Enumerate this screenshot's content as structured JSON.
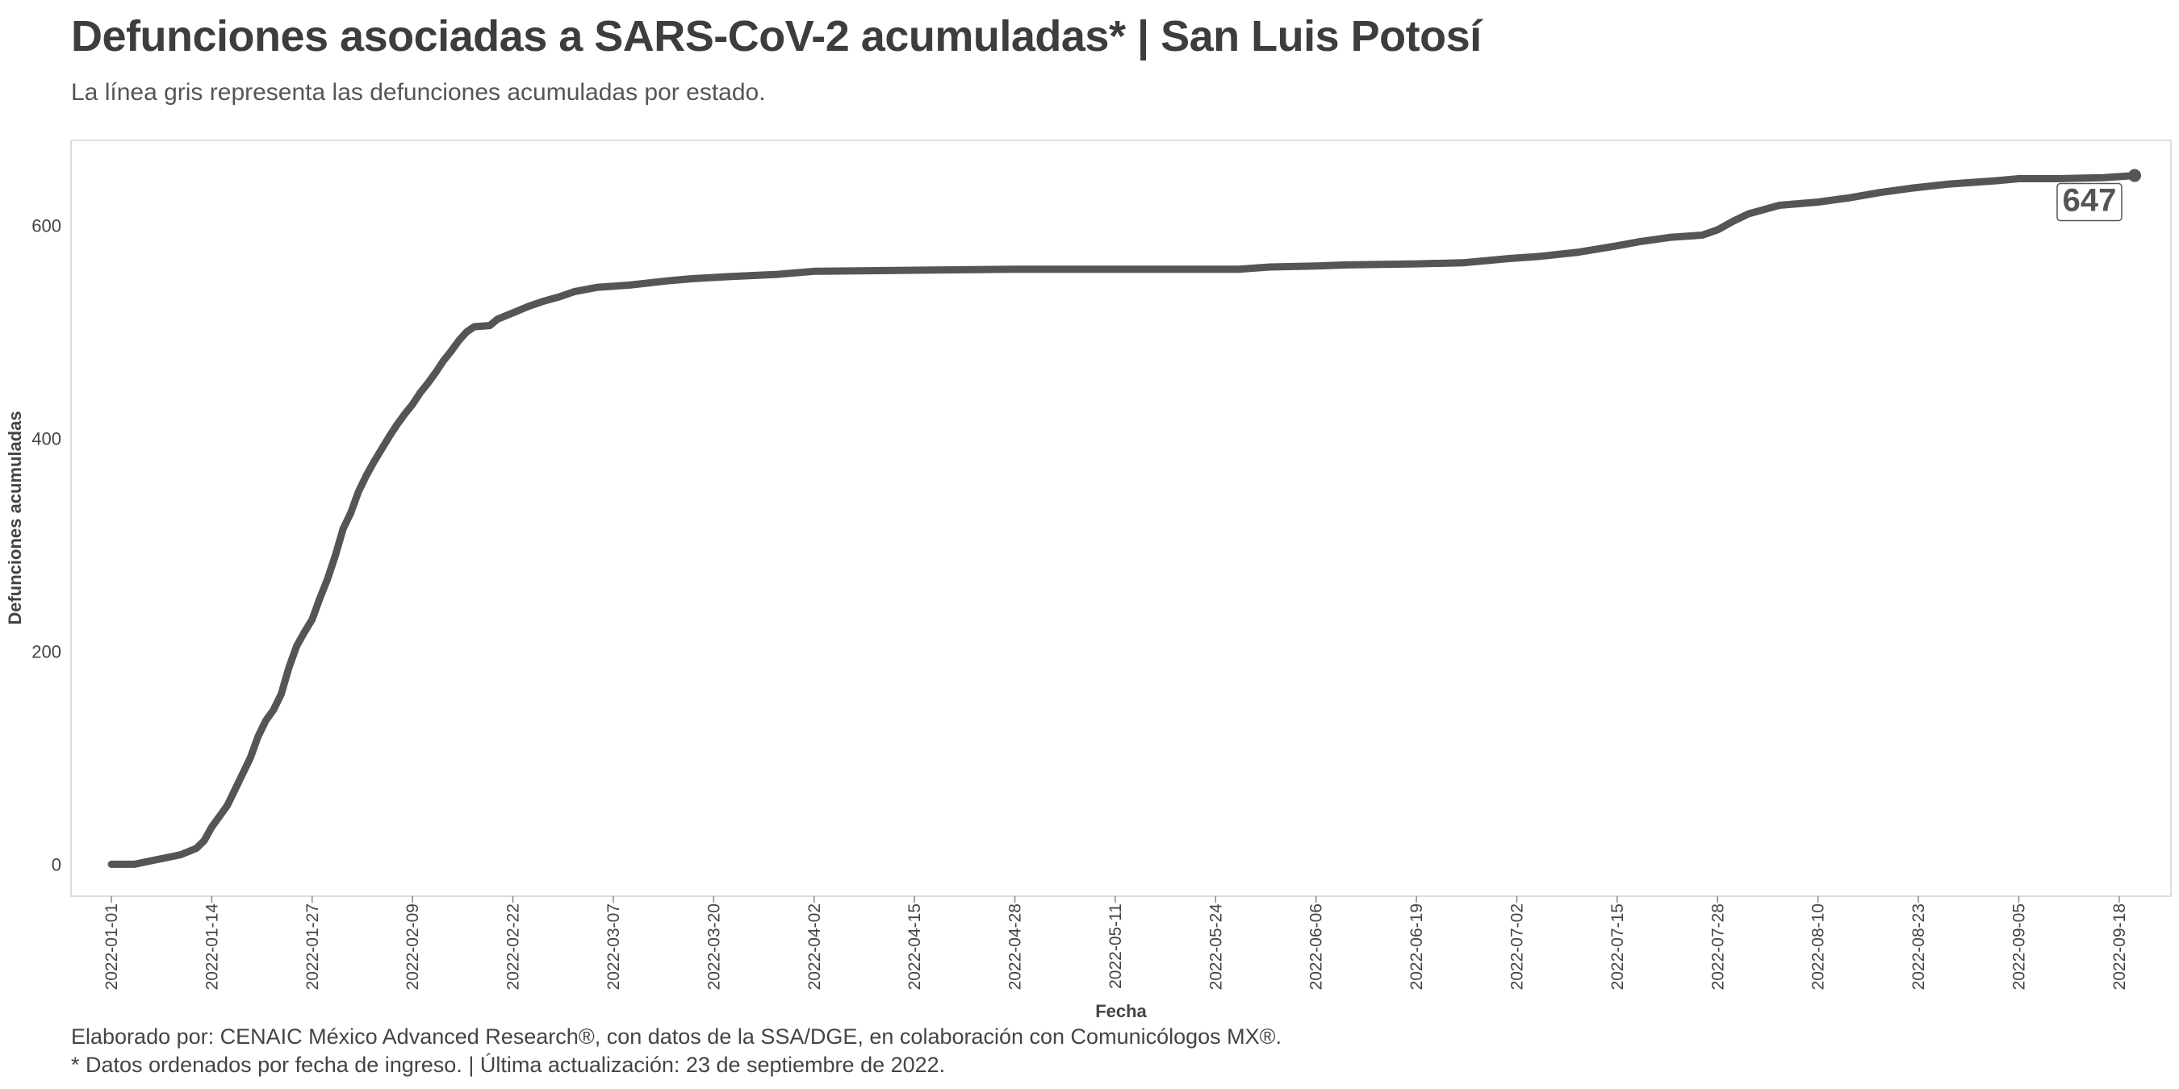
{
  "title": "Defunciones asociadas a SARS-CoV-2 acumuladas* | San Luis Potosí",
  "subtitle": "La línea gris representa las defunciones acumuladas por estado.",
  "caption": {
    "line1": "Elaborado por: CENAIC México Advanced Research®, con datos de la SSA/DGE, en colaboración con Comunicólogos MX®.",
    "line2": "* Datos ordenados por fecha de ingreso. | Última actualización: 23 de septiembre de 2022."
  },
  "colors": {
    "line": "#555555",
    "text": "#3d3d3d",
    "panel_border": "#dddddd"
  },
  "chart_data": {
    "type": "line",
    "xlabel": "Fecha",
    "ylabel": "Defunciones acumuladas",
    "x_start": "2022-01-01",
    "x_end": "2022-09-20",
    "x_ticks": [
      "2022-01-01",
      "2022-01-14",
      "2022-01-27",
      "2022-02-09",
      "2022-02-22",
      "2022-03-07",
      "2022-03-20",
      "2022-04-02",
      "2022-04-15",
      "2022-04-28",
      "2022-05-11",
      "2022-05-24",
      "2022-06-06",
      "2022-06-19",
      "2022-07-02",
      "2022-07-15",
      "2022-07-28",
      "2022-08-10",
      "2022-08-23",
      "2022-09-05",
      "2022-09-18"
    ],
    "y_ticks": [
      0,
      200,
      400,
      600
    ],
    "ylim": [
      -30,
      680
    ],
    "grid": false,
    "legend": "none",
    "end_label": "647",
    "series": [
      {
        "points": [
          [
            "2022-01-01",
            0
          ],
          [
            "2022-01-04",
            0
          ],
          [
            "2022-01-06",
            3
          ],
          [
            "2022-01-08",
            6
          ],
          [
            "2022-01-10",
            9
          ],
          [
            "2022-01-12",
            15
          ],
          [
            "2022-01-13",
            22
          ],
          [
            "2022-01-14",
            35
          ],
          [
            "2022-01-15",
            45
          ],
          [
            "2022-01-16",
            55
          ],
          [
            "2022-01-17",
            70
          ],
          [
            "2022-01-18",
            85
          ],
          [
            "2022-01-19",
            100
          ],
          [
            "2022-01-20",
            120
          ],
          [
            "2022-01-21",
            135
          ],
          [
            "2022-01-22",
            145
          ],
          [
            "2022-01-23",
            160
          ],
          [
            "2022-01-24",
            185
          ],
          [
            "2022-01-25",
            205
          ],
          [
            "2022-01-26",
            218
          ],
          [
            "2022-01-27",
            230
          ],
          [
            "2022-01-28",
            250
          ],
          [
            "2022-01-29",
            268
          ],
          [
            "2022-01-30",
            290
          ],
          [
            "2022-01-31",
            315
          ],
          [
            "2022-02-01",
            330
          ],
          [
            "2022-02-02",
            350
          ],
          [
            "2022-02-03",
            365
          ],
          [
            "2022-02-04",
            378
          ],
          [
            "2022-02-05",
            390
          ],
          [
            "2022-02-06",
            402
          ],
          [
            "2022-02-07",
            413
          ],
          [
            "2022-02-08",
            423
          ],
          [
            "2022-02-09",
            432
          ],
          [
            "2022-02-10",
            443
          ],
          [
            "2022-02-11",
            452
          ],
          [
            "2022-02-12",
            462
          ],
          [
            "2022-02-13",
            473
          ],
          [
            "2022-02-14",
            482
          ],
          [
            "2022-02-15",
            492
          ],
          [
            "2022-02-16",
            500
          ],
          [
            "2022-02-17",
            505
          ],
          [
            "2022-02-19",
            506
          ],
          [
            "2022-02-20",
            512
          ],
          [
            "2022-02-22",
            518
          ],
          [
            "2022-02-24",
            524
          ],
          [
            "2022-02-26",
            529
          ],
          [
            "2022-02-28",
            533
          ],
          [
            "2022-03-02",
            538
          ],
          [
            "2022-03-05",
            542
          ],
          [
            "2022-03-09",
            544
          ],
          [
            "2022-03-14",
            548
          ],
          [
            "2022-03-17",
            550
          ],
          [
            "2022-03-22",
            552
          ],
          [
            "2022-03-28",
            554
          ],
          [
            "2022-04-02",
            557
          ],
          [
            "2022-04-15",
            558
          ],
          [
            "2022-04-28",
            559
          ],
          [
            "2022-05-11",
            559
          ],
          [
            "2022-05-27",
            559
          ],
          [
            "2022-05-31",
            561
          ],
          [
            "2022-06-06",
            562
          ],
          [
            "2022-06-10",
            563
          ],
          [
            "2022-06-19",
            564
          ],
          [
            "2022-06-25",
            565
          ],
          [
            "2022-07-01",
            569
          ],
          [
            "2022-07-05",
            571
          ],
          [
            "2022-07-10",
            575
          ],
          [
            "2022-07-15",
            581
          ],
          [
            "2022-07-18",
            585
          ],
          [
            "2022-07-22",
            589
          ],
          [
            "2022-07-26",
            591
          ],
          [
            "2022-07-28",
            596
          ],
          [
            "2022-07-30",
            604
          ],
          [
            "2022-08-01",
            611
          ],
          [
            "2022-08-03",
            615
          ],
          [
            "2022-08-05",
            619
          ],
          [
            "2022-08-10",
            622
          ],
          [
            "2022-08-14",
            626
          ],
          [
            "2022-08-18",
            631
          ],
          [
            "2022-08-22",
            635
          ],
          [
            "2022-08-27",
            639
          ],
          [
            "2022-09-02",
            642
          ],
          [
            "2022-09-05",
            644
          ],
          [
            "2022-09-10",
            644
          ],
          [
            "2022-09-16",
            645
          ],
          [
            "2022-09-20",
            647
          ]
        ]
      }
    ]
  }
}
